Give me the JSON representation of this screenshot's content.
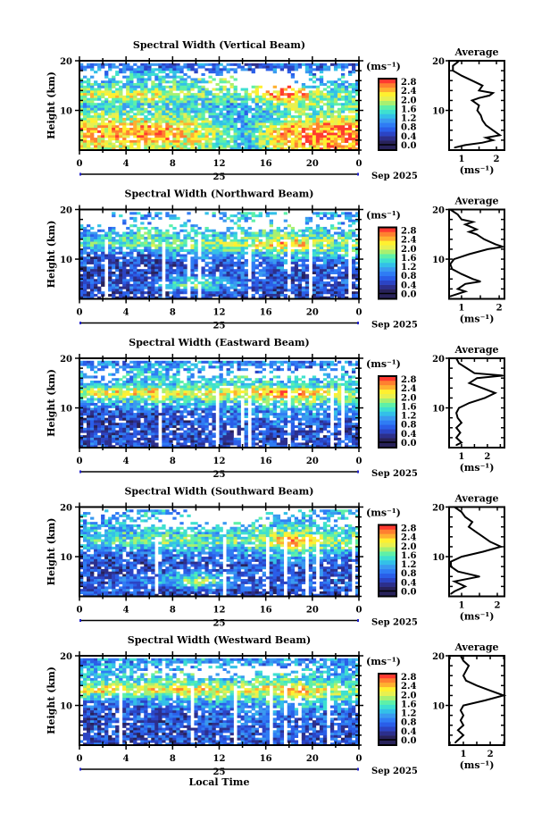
{
  "shared": {
    "ylabel": "Height (km)",
    "yticks": [
      "20",
      "10"
    ],
    "xticks": [
      "0",
      "4",
      "8",
      "12",
      "16",
      "20",
      "0"
    ],
    "day": "25",
    "month": "Sep 2025",
    "xlabel": "Local Time",
    "colorbar_label": "(ms⁻¹)",
    "colorbar_ticks": [
      "2.8",
      "2.4",
      "2.0",
      "1.6",
      "1.2",
      "0.8",
      "0.4",
      "0.0"
    ],
    "average_title": "Average",
    "average_xlabel": "(ms⁻¹)",
    "average_xticks": [
      "1",
      "2"
    ],
    "colormap": [
      "#28225a",
      "#2c2f8c",
      "#2b44c4",
      "#2a5ee8",
      "#2f7cf4",
      "#3a9af0",
      "#33c0e8",
      "#3ee0d0",
      "#5ef0a8",
      "#a8f070",
      "#e8f050",
      "#fff030",
      "#ffb030",
      "#ff8030",
      "#ff3a30"
    ]
  },
  "chart_data": [
    {
      "type": "heatmap",
      "title": "Spectral Width (Vertical Beam)",
      "ylim": [
        2,
        20
      ],
      "xlim": [
        0,
        24
      ],
      "clim": [
        0,
        2.8
      ],
      "grid_heights_km": [
        19,
        17,
        15,
        13,
        11,
        9,
        7,
        5,
        3
      ],
      "grid_times_h": [
        2,
        6,
        10,
        14,
        18,
        22
      ],
      "values": [
        [
          0.8,
          0.7,
          0.8,
          0.7,
          0.8,
          0.8
        ],
        [
          null,
          1.2,
          null,
          null,
          null,
          null
        ],
        [
          1.3,
          1.4,
          1.5,
          null,
          null,
          1.2
        ],
        [
          2.0,
          2.1,
          1.6,
          1.7,
          2.6,
          1.6
        ],
        [
          1.2,
          1.4,
          1.3,
          1.0,
          1.8,
          1.5
        ],
        [
          1.8,
          1.6,
          1.5,
          1.0,
          1.5,
          1.7
        ],
        [
          2.2,
          2.3,
          2.0,
          1.1,
          2.2,
          2.4
        ],
        [
          2.3,
          2.4,
          2.1,
          1.2,
          2.5,
          2.6
        ],
        [
          2.0,
          2.1,
          1.9,
          1.1,
          2.2,
          2.4
        ]
      ],
      "average": {
        "xlim": [
          0.64,
          2.23
        ],
        "profile": [
          [
            19.8,
            0.9
          ],
          [
            19,
            0.75
          ],
          [
            18,
            0.75
          ],
          [
            17,
            1.0
          ],
          [
            16,
            1.3
          ],
          [
            15,
            1.6
          ],
          [
            14,
            1.5
          ],
          [
            13.5,
            1.9
          ],
          [
            13,
            1.8
          ],
          [
            12.5,
            1.5
          ],
          [
            12,
            1.3
          ],
          [
            11,
            1.5
          ],
          [
            10,
            1.45
          ],
          [
            9,
            1.55
          ],
          [
            8,
            1.6
          ],
          [
            7,
            1.7
          ],
          [
            6,
            1.9
          ],
          [
            5,
            2.1
          ],
          [
            4.5,
            1.7
          ],
          [
            4,
            1.9
          ],
          [
            3.5,
            1.6
          ],
          [
            3,
            1.1
          ],
          [
            2.5,
            0.8
          ]
        ]
      }
    },
    {
      "type": "heatmap",
      "title": "Spectral Width (Northward Beam)",
      "ylim": [
        2,
        20
      ],
      "xlim": [
        0,
        24
      ],
      "clim": [
        0,
        2.8
      ],
      "grid_heights_km": [
        19,
        17,
        15,
        13,
        11,
        9,
        7,
        5,
        3
      ],
      "grid_times_h": [
        2,
        6,
        10,
        14,
        18,
        22
      ],
      "values": [
        [
          null,
          1.0,
          null,
          1.2,
          null,
          1.0
        ],
        [
          null,
          null,
          null,
          null,
          null,
          null
        ],
        [
          1.0,
          1.4,
          1.2,
          1.3,
          1.5,
          1.3
        ],
        [
          1.5,
          1.6,
          1.8,
          1.9,
          2.5,
          1.7
        ],
        [
          0.6,
          0.7,
          1.2,
          1.0,
          1.4,
          1.3
        ],
        [
          0.5,
          0.5,
          0.6,
          0.6,
          0.8,
          0.6
        ],
        [
          0.5,
          0.5,
          0.7,
          0.6,
          0.6,
          0.5
        ],
        [
          0.6,
          0.8,
          1.8,
          0.7,
          0.6,
          0.6
        ],
        [
          0.5,
          0.5,
          0.6,
          0.5,
          0.5,
          0.5
        ]
      ],
      "average": {
        "xlim": [
          0.67,
          2.14
        ],
        "profile": [
          [
            20,
            0.7
          ],
          [
            19,
            0.9
          ],
          [
            18,
            1.0
          ],
          [
            17.5,
            1.3
          ],
          [
            17,
            1.1
          ],
          [
            16,
            1.4
          ],
          [
            15.5,
            1.2
          ],
          [
            15,
            1.4
          ],
          [
            14,
            1.6
          ],
          [
            13,
            1.9
          ],
          [
            12.5,
            2.1
          ],
          [
            12,
            1.7
          ],
          [
            11,
            1.2
          ],
          [
            10,
            0.8
          ],
          [
            9,
            0.7
          ],
          [
            8,
            0.75
          ],
          [
            7,
            1.0
          ],
          [
            6,
            1.3
          ],
          [
            5.5,
            1.5
          ],
          [
            5,
            1.1
          ],
          [
            4,
            0.9
          ],
          [
            3.5,
            1.1
          ],
          [
            3,
            0.9
          ],
          [
            2.5,
            0.7
          ]
        ]
      }
    },
    {
      "type": "heatmap",
      "title": "Spectral Width (Eastward Beam)",
      "ylim": [
        2,
        20
      ],
      "xlim": [
        0,
        24
      ],
      "clim": [
        0,
        2.8
      ],
      "grid_heights_km": [
        19,
        17,
        15,
        13,
        11,
        9,
        7,
        5,
        3
      ],
      "grid_times_h": [
        2,
        6,
        10,
        14,
        18,
        22
      ],
      "values": [
        [
          0.9,
          1.0,
          1.0,
          0.9,
          0.8,
          0.8
        ],
        [
          null,
          1.2,
          null,
          null,
          null,
          null
        ],
        [
          1.0,
          1.3,
          1.1,
          1.4,
          1.2,
          1.2
        ],
        [
          2.1,
          2.3,
          2.0,
          2.2,
          2.6,
          1.8
        ],
        [
          1.0,
          1.3,
          1.2,
          1.3,
          1.5,
          1.4
        ],
        [
          0.5,
          0.6,
          0.6,
          0.8,
          0.9,
          1.0
        ],
        [
          0.5,
          0.5,
          0.6,
          0.7,
          0.7,
          0.6
        ],
        [
          0.5,
          0.5,
          0.5,
          0.6,
          0.6,
          0.5
        ],
        [
          0.6,
          0.5,
          0.5,
          0.5,
          0.6,
          0.6
        ]
      ],
      "average": {
        "xlim": [
          0.52,
          2.66
        ],
        "profile": [
          [
            20,
            0.8
          ],
          [
            19,
            0.9
          ],
          [
            18,
            1.2
          ],
          [
            17,
            1.5
          ],
          [
            16.5,
            2.6
          ],
          [
            16,
            1.6
          ],
          [
            15,
            1.3
          ],
          [
            14,
            1.8
          ],
          [
            13,
            2.3
          ],
          [
            12,
            1.9
          ],
          [
            11,
            1.3
          ],
          [
            10,
            0.9
          ],
          [
            9,
            0.8
          ],
          [
            8,
            0.85
          ],
          [
            7,
            1.0
          ],
          [
            6,
            0.8
          ],
          [
            5,
            0.95
          ],
          [
            4,
            0.8
          ],
          [
            3,
            1.0
          ],
          [
            2.5,
            0.8
          ]
        ]
      }
    },
    {
      "type": "heatmap",
      "title": "Spectral Width (Southward Beam)",
      "ylim": [
        2,
        20
      ],
      "xlim": [
        0,
        24
      ],
      "clim": [
        0,
        2.8
      ],
      "grid_heights_km": [
        19,
        17,
        15,
        13,
        11,
        9,
        7,
        5,
        3
      ],
      "grid_times_h": [
        2,
        6,
        10,
        14,
        18,
        22
      ],
      "values": [
        [
          null,
          1.1,
          null,
          null,
          null,
          1.2
        ],
        [
          1.0,
          null,
          null,
          null,
          1.2,
          null
        ],
        [
          1.2,
          1.3,
          1.2,
          1.4,
          1.6,
          1.3
        ],
        [
          1.5,
          1.6,
          1.7,
          1.5,
          2.5,
          1.8
        ],
        [
          0.7,
          0.8,
          1.0,
          1.0,
          1.5,
          1.2
        ],
        [
          0.5,
          0.6,
          0.6,
          0.6,
          0.8,
          0.6
        ],
        [
          0.5,
          0.6,
          0.8,
          0.6,
          0.7,
          0.6
        ],
        [
          0.6,
          0.8,
          2.0,
          0.7,
          0.6,
          0.7
        ],
        [
          0.6,
          0.5,
          0.6,
          0.5,
          0.5,
          0.5
        ]
      ],
      "average": {
        "xlim": [
          0.65,
          2.2
        ],
        "profile": [
          [
            20,
            0.8
          ],
          [
            19,
            1.0
          ],
          [
            18,
            1.1
          ],
          [
            17,
            1.3
          ],
          [
            16,
            1.2
          ],
          [
            15,
            1.4
          ],
          [
            14,
            1.6
          ],
          [
            13,
            1.8
          ],
          [
            12,
            2.1
          ],
          [
            11,
            1.6
          ],
          [
            10,
            1.0
          ],
          [
            9,
            0.7
          ],
          [
            8,
            0.7
          ],
          [
            7,
            0.9
          ],
          [
            6,
            1.5
          ],
          [
            5,
            0.8
          ],
          [
            4,
            1.1
          ],
          [
            3,
            0.8
          ],
          [
            2.5,
            0.7
          ]
        ]
      }
    },
    {
      "type": "heatmap",
      "title": "Spectral Width (Westward Beam)",
      "ylim": [
        2,
        20
      ],
      "xlim": [
        0,
        24
      ],
      "clim": [
        0,
        2.8
      ],
      "grid_heights_km": [
        19,
        17,
        15,
        13,
        11,
        9,
        7,
        5,
        3
      ],
      "grid_times_h": [
        2,
        6,
        10,
        14,
        18,
        22
      ],
      "values": [
        [
          0.9,
          1.0,
          1.1,
          1.0,
          0.9,
          1.0
        ],
        [
          1.2,
          null,
          null,
          null,
          null,
          1.1
        ],
        [
          1.2,
          1.4,
          1.3,
          1.3,
          1.5,
          1.2
        ],
        [
          2.2,
          2.2,
          2.3,
          2.0,
          2.4,
          1.9
        ],
        [
          0.9,
          1.0,
          1.2,
          1.2,
          1.4,
          1.3
        ],
        [
          0.5,
          0.6,
          0.7,
          0.8,
          1.0,
          0.8
        ],
        [
          0.5,
          0.6,
          0.6,
          0.7,
          0.7,
          0.6
        ],
        [
          0.6,
          0.5,
          0.6,
          0.6,
          0.7,
          0.6
        ],
        [
          0.5,
          0.5,
          0.5,
          0.6,
          0.6,
          0.5
        ]
      ],
      "average": {
        "xlim": [
          0.47,
          2.53
        ],
        "profile": [
          [
            20,
            0.9
          ],
          [
            19,
            1.0
          ],
          [
            18,
            1.2
          ],
          [
            17,
            1.1
          ],
          [
            16,
            1.0
          ],
          [
            15,
            1.1
          ],
          [
            14,
            1.5
          ],
          [
            13,
            2.0
          ],
          [
            12,
            2.5
          ],
          [
            11,
            1.8
          ],
          [
            10,
            1.0
          ],
          [
            9,
            0.9
          ],
          [
            8,
            1.0
          ],
          [
            7,
            0.9
          ],
          [
            6,
            1.0
          ],
          [
            5,
            0.8
          ],
          [
            4,
            1.0
          ],
          [
            3,
            0.8
          ],
          [
            2.5,
            0.7
          ]
        ]
      }
    }
  ]
}
